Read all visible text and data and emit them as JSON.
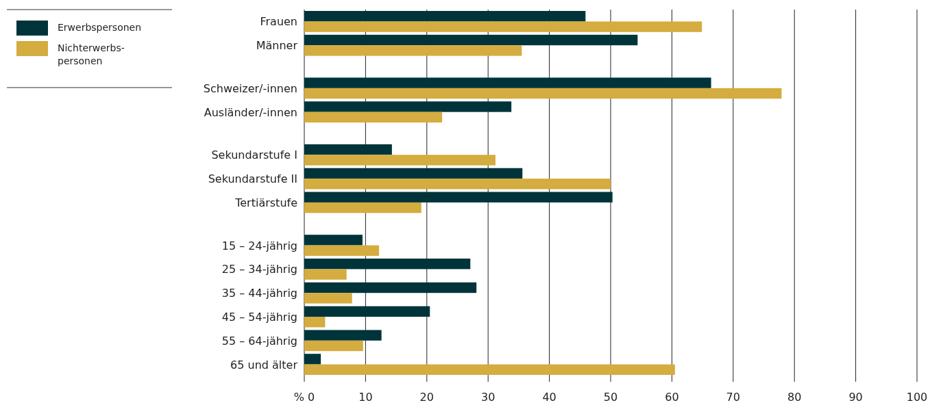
{
  "chart_data": {
    "type": "bar",
    "orientation": "horizontal",
    "categories": [
      "Frauen",
      "Männer",
      null,
      "Schweizer/-innen",
      "Ausländer/-innen",
      null,
      "Sekundarstufe I",
      "Sekundarstufe II",
      "Tertiärstufe",
      null,
      "15 – 24-jährig",
      "25 – 34-jährig",
      "35 – 44-jährig",
      "45 – 54-jährig",
      "55 – 64-jährig",
      "65 und älter"
    ],
    "series": [
      {
        "name": "Erwerbspersonen",
        "color": "#00343a",
        "values": [
          45.9,
          54.4,
          null,
          66.4,
          33.8,
          null,
          14.3,
          35.6,
          50.3,
          null,
          9.5,
          27.1,
          28.1,
          20.5,
          12.6,
          2.7
        ]
      },
      {
        "name": "Nichterwerbs- personen",
        "color": "#d4ac3f",
        "values": [
          64.9,
          35.5,
          null,
          77.9,
          22.5,
          null,
          31.2,
          50.0,
          19.1,
          null,
          12.2,
          6.9,
          7.8,
          3.4,
          9.6,
          60.5
        ]
      }
    ],
    "xlim": [
      0,
      100
    ],
    "xticks": [
      {
        "value": 0,
        "label": "% 0"
      },
      10,
      20,
      30,
      40,
      50,
      60,
      70,
      80,
      90,
      100
    ],
    "grid": "x",
    "legend": "top left"
  }
}
